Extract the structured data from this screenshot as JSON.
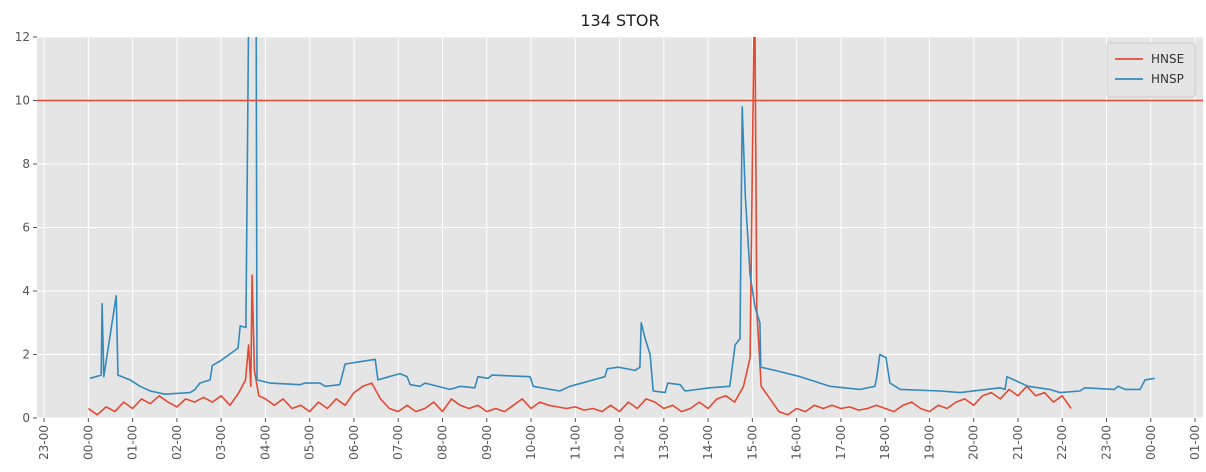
{
  "chart_data": {
    "type": "line",
    "title": "134 STOR",
    "xlim": [
      -1.16,
      25.18
    ],
    "xticks": [
      {
        "value": -1,
        "label": "23-00"
      },
      {
        "value": 0,
        "label": "00-00"
      },
      {
        "value": 1,
        "label": "01-00"
      },
      {
        "value": 2,
        "label": "02-00"
      },
      {
        "value": 3,
        "label": "03-00"
      },
      {
        "value": 4,
        "label": "04-00"
      },
      {
        "value": 5,
        "label": "05-00"
      },
      {
        "value": 6,
        "label": "06-00"
      },
      {
        "value": 7,
        "label": "07-00"
      },
      {
        "value": 8,
        "label": "08-00"
      },
      {
        "value": 9,
        "label": "09-00"
      },
      {
        "value": 10,
        "label": "10-00"
      },
      {
        "value": 11,
        "label": "11-00"
      },
      {
        "value": 12,
        "label": "12-00"
      },
      {
        "value": 13,
        "label": "13-00"
      },
      {
        "value": 14,
        "label": "14-00"
      },
      {
        "value": 15,
        "label": "15-00"
      },
      {
        "value": 16,
        "label": "16-00"
      },
      {
        "value": 17,
        "label": "17-00"
      },
      {
        "value": 18,
        "label": "18-00"
      },
      {
        "value": 19,
        "label": "19-00"
      },
      {
        "value": 20,
        "label": "20-00"
      },
      {
        "value": 21,
        "label": "21-00"
      },
      {
        "value": 22,
        "label": "22-00"
      },
      {
        "value": 23,
        "label": "23-00"
      },
      {
        "value": 24,
        "label": "00-00"
      },
      {
        "value": 25,
        "label": "01-00"
      }
    ],
    "ylim": [
      0,
      12
    ],
    "yticks": [
      0,
      2,
      4,
      6,
      8,
      10,
      12
    ],
    "grid": true,
    "legend": "upper right",
    "hline": 10,
    "hline_color": "#E24A33",
    "series": [
      {
        "name": "HNSE",
        "color": "#E24A33",
        "x": [
          0.0,
          0.2,
          0.4,
          0.6,
          0.8,
          1.0,
          1.2,
          1.4,
          1.6,
          1.8,
          2.0,
          2.2,
          2.4,
          2.6,
          2.8,
          3.0,
          3.2,
          3.4,
          3.55,
          3.62,
          3.67,
          3.7,
          3.75,
          3.85,
          4.0,
          4.2,
          4.4,
          4.6,
          4.8,
          5.0,
          5.2,
          5.4,
          5.6,
          5.8,
          6.0,
          6.2,
          6.4,
          6.6,
          6.8,
          7.0,
          7.2,
          7.4,
          7.6,
          7.8,
          8.0,
          8.2,
          8.4,
          8.6,
          8.8,
          9.0,
          9.2,
          9.4,
          9.6,
          9.8,
          10.0,
          10.2,
          10.4,
          10.6,
          10.8,
          11.0,
          11.2,
          11.4,
          11.6,
          11.8,
          12.0,
          12.2,
          12.4,
          12.6,
          12.8,
          13.0,
          13.2,
          13.4,
          13.6,
          13.8,
          14.0,
          14.2,
          14.4,
          14.6,
          14.8,
          14.95,
          15.05,
          15.1,
          15.2,
          15.4,
          15.6,
          15.8,
          16.0,
          16.2,
          16.4,
          16.6,
          16.8,
          17.0,
          17.2,
          17.4,
          17.6,
          17.8,
          18.0,
          18.2,
          18.4,
          18.6,
          18.8,
          19.0,
          19.2,
          19.4,
          19.6,
          19.8,
          20.0,
          20.2,
          20.4,
          20.6,
          20.8,
          21.0,
          21.2,
          21.4,
          21.6,
          21.8,
          22.0,
          22.2
        ],
        "values": [
          0.3,
          0.1,
          0.35,
          0.2,
          0.5,
          0.3,
          0.6,
          0.45,
          0.7,
          0.5,
          0.35,
          0.6,
          0.5,
          0.65,
          0.5,
          0.7,
          0.4,
          0.8,
          1.2,
          2.3,
          1.0,
          4.5,
          1.5,
          0.7,
          0.6,
          0.4,
          0.6,
          0.3,
          0.4,
          0.2,
          0.5,
          0.3,
          0.6,
          0.4,
          0.8,
          1.0,
          1.1,
          0.6,
          0.3,
          0.2,
          0.4,
          0.2,
          0.3,
          0.5,
          0.2,
          0.6,
          0.4,
          0.3,
          0.4,
          0.2,
          0.3,
          0.2,
          0.4,
          0.6,
          0.3,
          0.5,
          0.4,
          0.35,
          0.3,
          0.35,
          0.25,
          0.3,
          0.2,
          0.4,
          0.2,
          0.5,
          0.3,
          0.6,
          0.5,
          0.3,
          0.4,
          0.2,
          0.3,
          0.5,
          0.3,
          0.6,
          0.7,
          0.5,
          1.0,
          1.9,
          14,
          3.4,
          1.0,
          0.6,
          0.2,
          0.1,
          0.3,
          0.2,
          0.4,
          0.3,
          0.4,
          0.3,
          0.35,
          0.25,
          0.3,
          0.4,
          0.3,
          0.2,
          0.4,
          0.5,
          0.3,
          0.2,
          0.4,
          0.3,
          0.5,
          0.6,
          0.4,
          0.7,
          0.8,
          0.6,
          0.9,
          0.7,
          1.0,
          0.7,
          0.8,
          0.5,
          0.7,
          0.3
        ]
      },
      {
        "name": "HNSP",
        "color": "#348ABD",
        "x": [
          0.04,
          0.29,
          0.31,
          0.35,
          0.63,
          0.67,
          0.94,
          1.17,
          1.4,
          1.73,
          2.3,
          2.41,
          2.52,
          2.75,
          2.8,
          2.98,
          3.38,
          3.43,
          3.56,
          3.63,
          3.79,
          3.81,
          4.11,
          4.78,
          4.89,
          5.23,
          5.35,
          5.68,
          5.8,
          6.25,
          6.48,
          6.54,
          7.04,
          7.2,
          7.27,
          7.49,
          7.61,
          8.17,
          8.4,
          8.73,
          8.8,
          9.03,
          9.12,
          9.98,
          10.05,
          10.43,
          10.65,
          10.88,
          11.67,
          11.72,
          11.97,
          12.35,
          12.46,
          12.49,
          12.58,
          12.69,
          12.76,
          13.03,
          13.09,
          13.37,
          13.48,
          14.04,
          14.49,
          14.61,
          14.72,
          14.77,
          14.84,
          14.95,
          15.06,
          15.17,
          15.19,
          15.51,
          16.08,
          16.75,
          17.43,
          17.77,
          17.81,
          17.88,
          18.02,
          18.11,
          18.34,
          19.24,
          19.69,
          20.59,
          20.71,
          20.75,
          21.23,
          21.72,
          21.95,
          22.4,
          22.51,
          23.18,
          23.26,
          23.42,
          23.76,
          23.87,
          24.09
        ],
        "values": [
          1.25,
          1.35,
          3.6,
          1.3,
          3.85,
          1.35,
          1.2,
          1.0,
          0.85,
          0.75,
          0.8,
          0.9,
          1.1,
          1.2,
          1.65,
          1.8,
          2.2,
          2.9,
          2.85,
          14,
          14,
          1.2,
          1.1,
          1.05,
          1.1,
          1.1,
          1.0,
          1.05,
          1.7,
          1.8,
          1.85,
          1.2,
          1.4,
          1.3,
          1.05,
          1.0,
          1.1,
          0.9,
          1.0,
          0.95,
          1.3,
          1.25,
          1.35,
          1.3,
          1.0,
          0.9,
          0.85,
          1.0,
          1.3,
          1.55,
          1.6,
          1.5,
          1.6,
          3.0,
          2.5,
          2.0,
          0.85,
          0.8,
          1.1,
          1.05,
          0.85,
          0.95,
          1.0,
          2.3,
          2.5,
          9.8,
          7,
          4.5,
          3.5,
          3.0,
          1.6,
          1.5,
          1.3,
          1.0,
          0.9,
          1.0,
          1.3,
          2.0,
          1.9,
          1.1,
          0.9,
          0.85,
          0.8,
          0.95,
          0.9,
          1.3,
          1.0,
          0.9,
          0.8,
          0.85,
          0.95,
          0.9,
          1.0,
          0.9,
          0.9,
          1.2,
          1.25
        ]
      }
    ]
  }
}
